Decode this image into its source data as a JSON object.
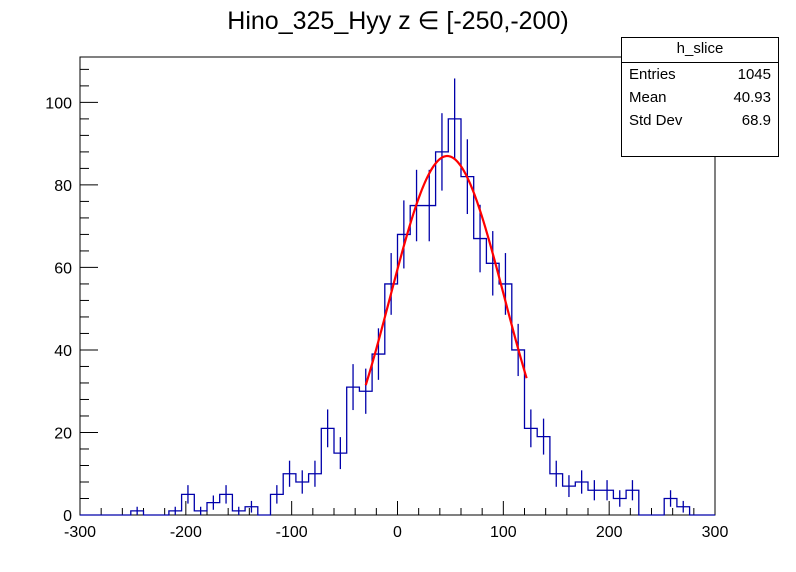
{
  "chart_data": {
    "type": "histogram",
    "title": "Hino_325_Hyy z  ∈ [-250,-200)",
    "xlabel": "",
    "ylabel": "",
    "xlim": [
      -300,
      300
    ],
    "ylim": [
      0,
      111
    ],
    "x_ticks": [
      -300,
      -200,
      -100,
      0,
      100,
      200,
      300
    ],
    "y_ticks": [
      0,
      20,
      40,
      60,
      80,
      100
    ],
    "bin_width": 12,
    "bin_start": -300,
    "counts": [
      0,
      0,
      0,
      0,
      1,
      0,
      0,
      1,
      5,
      1,
      3,
      5,
      1,
      2,
      0,
      5,
      10,
      8,
      10,
      21,
      15,
      31,
      30,
      39,
      56,
      68,
      75,
      75,
      88,
      96,
      82,
      67,
      61,
      56,
      40,
      21,
      19,
      10,
      7,
      8,
      6,
      6,
      4,
      6,
      0,
      0,
      4,
      2,
      0,
      0
    ],
    "error_bars": "sqrt(N)",
    "fit": {
      "function": "gaus",
      "constant": 87,
      "mean": 47,
      "sigma": 54,
      "range": [
        -30,
        122
      ],
      "color": "#ff0000"
    },
    "hist_color": "#0000aa",
    "grid": false,
    "stats_box": {
      "name": "h_slice",
      "rows": [
        {
          "label": "Entries",
          "value": "1045"
        },
        {
          "label": "Mean",
          "value": "40.93"
        },
        {
          "label": "Std Dev",
          "value": "68.9"
        }
      ],
      "placement": "top-right"
    }
  }
}
